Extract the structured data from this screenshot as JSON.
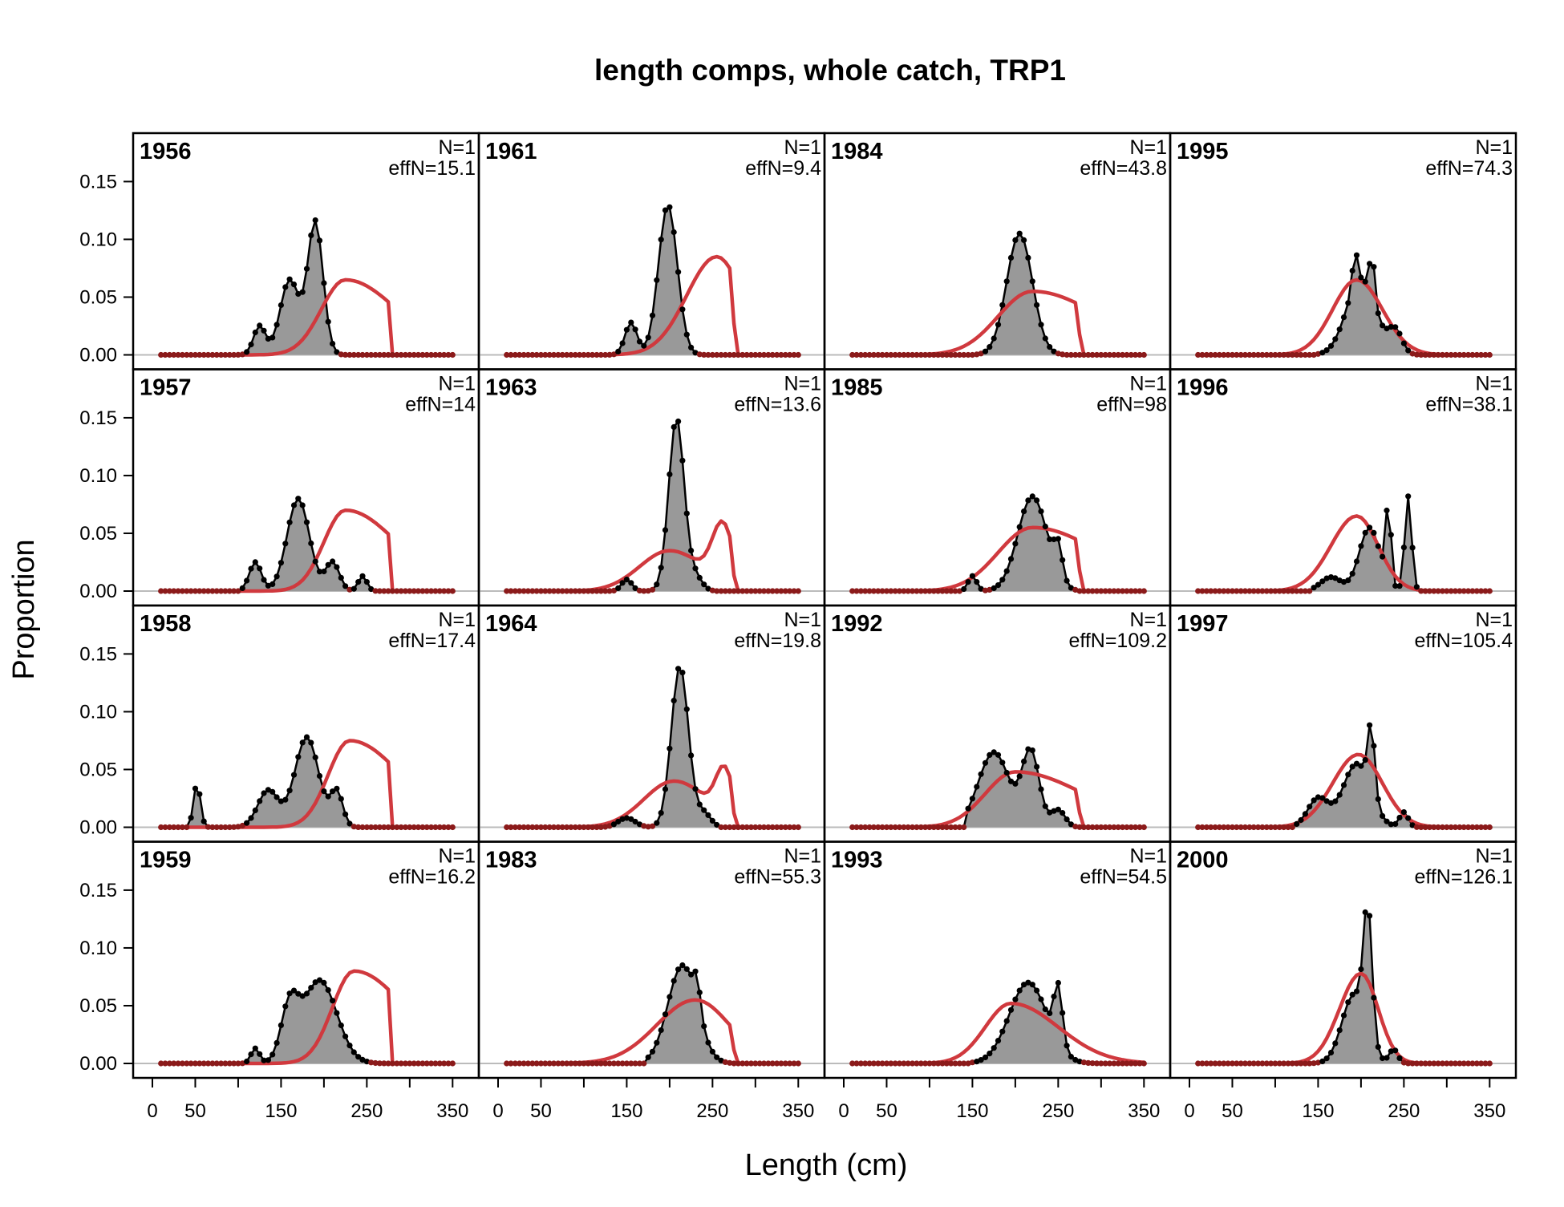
{
  "chart_data": {
    "type": "area",
    "title": "length comps, whole catch, TRP1",
    "xlabel": "Length (cm)",
    "ylabel": "Proportion",
    "xlim": [
      0,
      360
    ],
    "ylim": [
      0,
      0.16
    ],
    "x_ticks": [
      0,
      50,
      150,
      250,
      350
    ],
    "y_ticks": [
      "0.00",
      "0.05",
      "0.10",
      "0.15"
    ],
    "grid": false,
    "legend": "none",
    "colors": {
      "observed_fill": "#999999",
      "observed_line": "#000000",
      "expected_line": "#d0393e",
      "zero_line": "#bbbbbb",
      "zero_points": "#8b1a1a"
    },
    "length_bins": {
      "start": 10,
      "end": 350,
      "step": 5
    },
    "panels": [
      {
        "year": "1956",
        "n_label": "N=1",
        "effn_label": "effN=15.1",
        "observed": {
          "peaks": [
            [
              125,
              0.025,
              7
            ],
            [
              160,
              0.065,
              11
            ],
            [
              190,
              0.115,
              9
            ]
          ],
          "range": [
            95,
            235
          ]
        },
        "expected": {
          "type": "trunc",
          "peak": 225,
          "sdL": 28,
          "sdR": 60,
          "height": 0.065,
          "cut": 275
        }
      },
      {
        "year": "1961",
        "n_label": "N=1",
        "effn_label": "effN=9.4",
        "observed": {
          "peaks": [
            [
              155,
              0.028,
              7
            ],
            [
              198,
              0.13,
              11
            ]
          ],
          "range": [
            130,
            245
          ]
        },
        "expected": {
          "type": "trunc",
          "peak": 255,
          "sdL": 35,
          "sdR": 30,
          "height": 0.085,
          "cut": 272
        }
      },
      {
        "year": "1984",
        "n_label": "N=1",
        "effn_label": "effN=43.8",
        "observed": {
          "peaks": [
            [
              205,
              0.105,
              15
            ]
          ],
          "range": [
            155,
            255
          ]
        },
        "expected": {
          "type": "trunc",
          "peak": 220,
          "sdL": 40,
          "sdR": 80,
          "height": 0.055,
          "cut": 272
        }
      },
      {
        "year": "1995",
        "n_label": "N=1",
        "effn_label": "effN=74.3",
        "observed": {
          "peaks": [
            [
              200,
              0.065,
              17
            ],
            [
              193,
              0.03,
              3
            ],
            [
              213,
              0.04,
              3
            ],
            [
              240,
              0.02,
              8
            ]
          ],
          "range": [
            150,
            295
          ]
        },
        "expected": {
          "type": "gauss",
          "peak": 195,
          "sdL": 28,
          "sdR": 30,
          "height": 0.065
        }
      },
      {
        "year": "1957",
        "n_label": "N=1",
        "effn_label": "effN=14",
        "observed": {
          "peaks": [
            [
              120,
              0.025,
              7
            ],
            [
              170,
              0.08,
              13
            ],
            [
              210,
              0.025,
              8
            ],
            [
              245,
              0.013,
              5
            ]
          ],
          "range": [
            105,
            260
          ]
        },
        "expected": {
          "type": "trunc",
          "peak": 225,
          "sdL": 25,
          "sdR": 60,
          "height": 0.07,
          "cut": 275
        }
      },
      {
        "year": "1963",
        "n_label": "N=1",
        "effn_label": "effN=13.6",
        "observed": {
          "peaks": [
            [
              150,
              0.01,
              6
            ],
            [
              208,
              0.15,
              9
            ],
            [
              230,
              0.012,
              8
            ]
          ],
          "range": [
            130,
            250
          ]
        },
        "expected": {
          "type": "bimodal",
          "peak": 200,
          "sdL": 35,
          "sdR": 40,
          "height": 0.035,
          "peak2": 262,
          "sd2": 12,
          "height2": 0.05,
          "cut": 272
        }
      },
      {
        "year": "1985",
        "n_label": "N=1",
        "effn_label": "effN=98",
        "observed": {
          "peaks": [
            [
              150,
              0.013,
              5
            ],
            [
              220,
              0.082,
              17
            ],
            [
              250,
              0.028,
              5
            ]
          ],
          "range": [
            140,
            270
          ]
        },
        "expected": {
          "type": "trunc",
          "peak": 220,
          "sdL": 40,
          "sdR": 80,
          "height": 0.055,
          "cut": 272
        }
      },
      {
        "year": "1996",
        "n_label": "N=1",
        "effn_label": "effN=38.1",
        "observed": {
          "peaks": [
            [
              165,
              0.012,
              12
            ],
            [
              210,
              0.055,
              12
            ],
            [
              232,
              0.07,
              3
            ],
            [
              255,
              0.082,
              4
            ]
          ],
          "range": [
            145,
            290
          ]
        },
        "expected": {
          "type": "gauss",
          "peak": 195,
          "sdL": 30,
          "sdR": 25,
          "height": 0.065
        }
      },
      {
        "year": "1958",
        "n_label": "N=1",
        "effn_label": "effN=17.4",
        "observed": {
          "peaks": [
            [
              52,
              0.038,
              4
            ],
            [
              135,
              0.032,
              12
            ],
            [
              180,
              0.078,
              14
            ],
            [
              215,
              0.03,
              7
            ]
          ],
          "range": [
            45,
            260
          ]
        },
        "expected": {
          "type": "trunc",
          "peak": 230,
          "sdL": 25,
          "sdR": 60,
          "height": 0.075,
          "cut": 275
        }
      },
      {
        "year": "1964",
        "n_label": "N=1",
        "effn_label": "effN=19.8",
        "observed": {
          "peaks": [
            [
              150,
              0.008,
              10
            ],
            [
              212,
              0.14,
              10
            ],
            [
              240,
              0.012,
              8
            ]
          ],
          "range": [
            120,
            255
          ]
        },
        "expected": {
          "type": "bimodal",
          "peak": 205,
          "sdL": 35,
          "sdR": 40,
          "height": 0.04,
          "peak2": 264,
          "sd2": 10,
          "height2": 0.04,
          "cut": 272
        }
      },
      {
        "year": "1992",
        "n_label": "N=1",
        "effn_label": "effN=109.2",
        "observed": {
          "peaks": [
            [
              175,
              0.065,
              18
            ],
            [
              218,
              0.065,
              10
            ],
            [
              250,
              0.015,
              8
            ]
          ],
          "range": [
            145,
            280
          ]
        },
        "expected": {
          "type": "trunc",
          "peak": 200,
          "sdL": 35,
          "sdR": 80,
          "height": 0.048,
          "cut": 272
        }
      },
      {
        "year": "1997",
        "n_label": "N=1",
        "effn_label": "effN=105.4",
        "observed": {
          "peaks": [
            [
              150,
              0.025,
              12
            ],
            [
              195,
              0.055,
              16
            ],
            [
              212,
              0.06,
              4
            ],
            [
              250,
              0.013,
              5
            ]
          ],
          "range": [
            125,
            290
          ]
        },
        "expected": {
          "type": "gauss",
          "peak": 197,
          "sdL": 30,
          "sdR": 28,
          "height": 0.063
        }
      },
      {
        "year": "1959",
        "n_label": "N=1",
        "effn_label": "effN=16.2",
        "observed": {
          "peaks": [
            [
              120,
              0.013,
              5
            ],
            [
              160,
              0.045,
              10
            ],
            [
              195,
              0.072,
              20
            ]
          ],
          "range": [
            105,
            270
          ]
        },
        "expected": {
          "type": "trunc",
          "peak": 235,
          "sdL": 25,
          "sdR": 60,
          "height": 0.08,
          "cut": 275
        }
      },
      {
        "year": "1983",
        "n_label": "N=1",
        "effn_label": "effN=55.3",
        "observed": {
          "peaks": [
            [
              215,
              0.085,
              17
            ],
            [
              232,
              0.025,
              4
            ]
          ],
          "range": [
            175,
            270
          ]
        },
        "expected": {
          "type": "trunc",
          "peak": 230,
          "sdL": 45,
          "sdR": 40,
          "height": 0.055,
          "cut": 272
        }
      },
      {
        "year": "1993",
        "n_label": "N=1",
        "effn_label": "effN=54.5",
        "observed": {
          "peaks": [
            [
              215,
              0.07,
              22
            ],
            [
              250,
              0.05,
              5
            ]
          ],
          "range": [
            150,
            295
          ]
        },
        "expected": {
          "type": "gauss",
          "peak": 195,
          "sdL": 30,
          "sdR": 55,
          "height": 0.052
        }
      },
      {
        "year": "2000",
        "n_label": "N=1",
        "effn_label": "effN=126.1",
        "observed": {
          "peaks": [
            [
              192,
              0.06,
              14
            ],
            [
              208,
              0.11,
              5
            ],
            [
              238,
              0.012,
              5
            ]
          ],
          "range": [
            145,
            285
          ]
        },
        "expected": {
          "type": "gauss",
          "peak": 200,
          "sdL": 25,
          "sdR": 20,
          "height": 0.078
        }
      }
    ]
  }
}
